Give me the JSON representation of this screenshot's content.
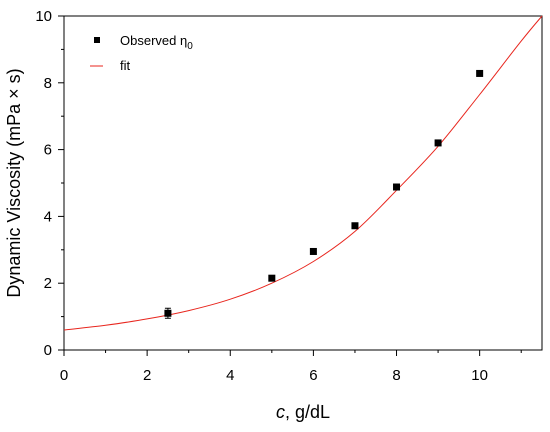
{
  "chart_data": {
    "type": "scatter",
    "xlabel": {
      "italic": "c",
      "rest": ", g/dL"
    },
    "ylabel": "Dynamic Viscosity (mPa × s)",
    "xlim": [
      0,
      11.5
    ],
    "ylim": [
      0,
      10
    ],
    "x_ticks": [
      0,
      2,
      4,
      6,
      8,
      10
    ],
    "y_ticks": [
      0,
      2,
      4,
      6,
      8,
      10
    ],
    "grid": false,
    "legend_position": "top-left",
    "series": [
      {
        "name": "Observed η",
        "name_subscript": "0",
        "kind": "points",
        "color": "#000000",
        "x": [
          2.5,
          5,
          6,
          7,
          8,
          9,
          10
        ],
        "y": [
          1.1,
          2.15,
          2.95,
          3.72,
          4.88,
          6.2,
          8.28
        ],
        "error": [
          0.15,
          0.08,
          0.06,
          0.06,
          0.05,
          0.06,
          0.05
        ]
      },
      {
        "name": "fit",
        "kind": "line",
        "color": "#e8261e",
        "x": [
          0,
          1,
          2,
          3,
          4,
          5,
          6,
          7,
          8,
          9,
          10,
          11,
          11.5
        ],
        "y": [
          0.6,
          0.74,
          0.93,
          1.18,
          1.52,
          2.0,
          2.65,
          3.55,
          4.78,
          6.1,
          7.65,
          9.25,
          10.0
        ]
      }
    ]
  }
}
